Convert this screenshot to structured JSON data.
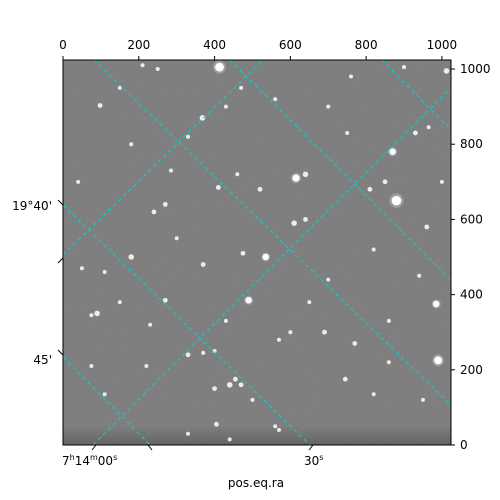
{
  "chart_data": {
    "type": "image",
    "xlabel": "pos.eq.ra",
    "ylabel": "",
    "pixel_axes": {
      "x": {
        "range": [
          0,
          1024
        ],
        "ticks": [
          0,
          200,
          400,
          600,
          800,
          1000
        ],
        "labels": [
          "0",
          "200",
          "400",
          "600",
          "800",
          "1000"
        ]
      },
      "y": {
        "range": [
          0,
          1024
        ],
        "ticks": [
          0,
          200,
          400,
          600,
          800,
          1000
        ],
        "labels": [
          "0",
          "200",
          "400",
          "600",
          "800",
          "1000"
        ]
      }
    },
    "ra_ticks": [
      {
        "main": "7",
        "sup1": "h",
        "mid": "14",
        "sup2": "m",
        "end": "00",
        "sup3": "s"
      },
      {
        "main": "30",
        "sup1": "s"
      }
    ],
    "dec_ticks": [
      "19°40'",
      "45'"
    ],
    "grid": true,
    "grid_color": "#00d4d4",
    "background_gray": "#7a7a7a",
    "stars": [
      [
        413,
        1005,
        5
      ],
      [
        1012,
        995,
        3
      ],
      [
        98,
        903,
        2.5
      ],
      [
        368,
        870,
        3
      ],
      [
        470,
        950,
        2
      ],
      [
        750,
        830,
        2
      ],
      [
        870,
        780,
        3.5
      ],
      [
        930,
        830,
        2.5
      ],
      [
        965,
        845,
        2
      ],
      [
        430,
        900,
        2
      ],
      [
        615,
        710,
        4
      ],
      [
        640,
        720,
        3
      ],
      [
        850,
        700,
        2.5
      ],
      [
        810,
        680,
        2.5
      ],
      [
        880,
        650,
        5.5
      ],
      [
        520,
        680,
        2.5
      ],
      [
        285,
        730,
        2
      ],
      [
        410,
        685,
        2.5
      ],
      [
        460,
        720,
        2
      ],
      [
        270,
        640,
        2.5
      ],
      [
        240,
        620,
        2.5
      ],
      [
        640,
        600,
        2.5
      ],
      [
        610,
        590,
        3
      ],
      [
        960,
        580,
        2.5
      ],
      [
        180,
        500,
        3
      ],
      [
        475,
        510,
        2.5
      ],
      [
        535,
        500,
        3.5
      ],
      [
        370,
        480,
        2.5
      ],
      [
        110,
        460,
        2
      ],
      [
        50,
        470,
        2
      ],
      [
        430,
        330,
        2
      ],
      [
        490,
        385,
        3.5
      ],
      [
        270,
        385,
        2.5
      ],
      [
        230,
        320,
        2
      ],
      [
        75,
        345,
        2
      ],
      [
        90,
        350,
        3
      ],
      [
        330,
        240,
        2.5
      ],
      [
        370,
        245,
        2
      ],
      [
        400,
        250,
        2
      ],
      [
        570,
        280,
        2
      ],
      [
        600,
        300,
        2
      ],
      [
        690,
        300,
        2.5
      ],
      [
        770,
        270,
        2.5
      ],
      [
        990,
        225,
        4.5
      ],
      [
        985,
        375,
        3.5
      ],
      [
        440,
        160,
        3
      ],
      [
        455,
        175,
        2.5
      ],
      [
        470,
        160,
        2.5
      ],
      [
        400,
        150,
        2.5
      ],
      [
        405,
        55,
        2.5
      ],
      [
        440,
        15,
        2
      ],
      [
        560,
        50,
        2
      ],
      [
        570,
        40,
        2
      ],
      [
        110,
        135,
        2
      ],
      [
        75,
        210,
        2
      ],
      [
        220,
        210,
        2
      ],
      [
        745,
        175,
        2.5
      ],
      [
        820,
        135,
        2
      ],
      [
        150,
        380,
        2
      ],
      [
        700,
        440,
        2
      ],
      [
        820,
        520,
        2
      ],
      [
        860,
        220,
        2
      ],
      [
        180,
        800,
        2
      ],
      [
        330,
        820,
        2
      ],
      [
        700,
        900,
        2
      ],
      [
        560,
        920,
        2
      ],
      [
        250,
        1000,
        2
      ],
      [
        150,
        950,
        2
      ],
      [
        940,
        450,
        2
      ],
      [
        1000,
        700,
        2
      ],
      [
        300,
        550,
        2
      ],
      [
        650,
        380,
        2
      ],
      [
        860,
        330,
        2
      ],
      [
        40,
        700,
        2
      ],
      [
        210,
        1010,
        2
      ],
      [
        900,
        1005,
        2
      ],
      [
        760,
        980,
        2
      ],
      [
        330,
        30,
        2
      ],
      [
        500,
        120,
        2
      ],
      [
        950,
        120,
        2
      ]
    ]
  }
}
